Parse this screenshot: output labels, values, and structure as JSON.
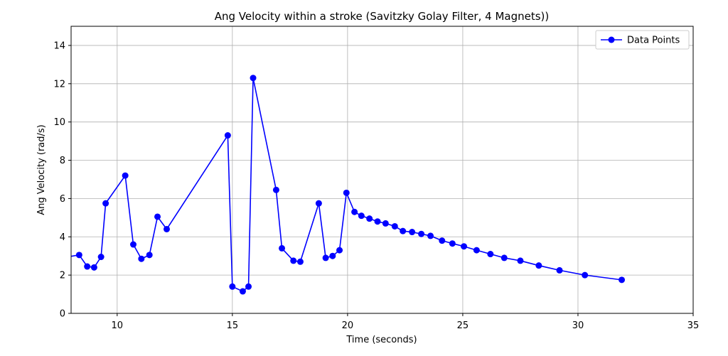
{
  "chart_data": {
    "type": "line",
    "title": "Ang Velocity within a stroke (Savitzky Golay Filter, 4 Magnets))",
    "xlabel": "Time (seconds)",
    "ylabel": "Ang Velocity (rad/s)",
    "xlim": [
      8,
      35
    ],
    "ylim": [
      0,
      15
    ],
    "xticks": [
      10,
      15,
      20,
      25,
      30,
      35
    ],
    "yticks": [
      0,
      2,
      4,
      6,
      8,
      10,
      12,
      14
    ],
    "grid": true,
    "legend_position": "top-right",
    "series": [
      {
        "name": "Data Points",
        "color": "#0000ff",
        "marker": "circle",
        "x": [
          7.6,
          8.35,
          8.7,
          9.0,
          9.3,
          9.5,
          10.35,
          10.7,
          11.05,
          11.4,
          11.75,
          12.15,
          14.8,
          15.0,
          15.45,
          15.7,
          15.9,
          16.9,
          17.15,
          17.65,
          17.95,
          18.75,
          19.05,
          19.35,
          19.65,
          19.95,
          20.3,
          20.6,
          20.95,
          21.3,
          21.65,
          22.05,
          22.4,
          22.8,
          23.2,
          23.6,
          24.1,
          24.55,
          25.05,
          25.6,
          26.2,
          26.8,
          27.5,
          28.3,
          29.2,
          30.3,
          31.9
        ],
        "y": [
          2.9,
          3.05,
          2.45,
          2.4,
          2.95,
          5.75,
          7.2,
          3.6,
          2.85,
          3.05,
          5.05,
          4.4,
          9.3,
          1.4,
          1.15,
          1.4,
          12.3,
          6.45,
          3.4,
          2.75,
          2.7,
          5.75,
          2.9,
          3.0,
          3.3,
          6.3,
          5.3,
          5.1,
          4.95,
          4.8,
          4.7,
          4.55,
          4.3,
          4.25,
          4.15,
          4.05,
          3.8,
          3.65,
          3.5,
          3.3,
          3.1,
          2.9,
          2.75,
          2.5,
          2.25,
          2.0,
          1.75
        ]
      }
    ]
  }
}
